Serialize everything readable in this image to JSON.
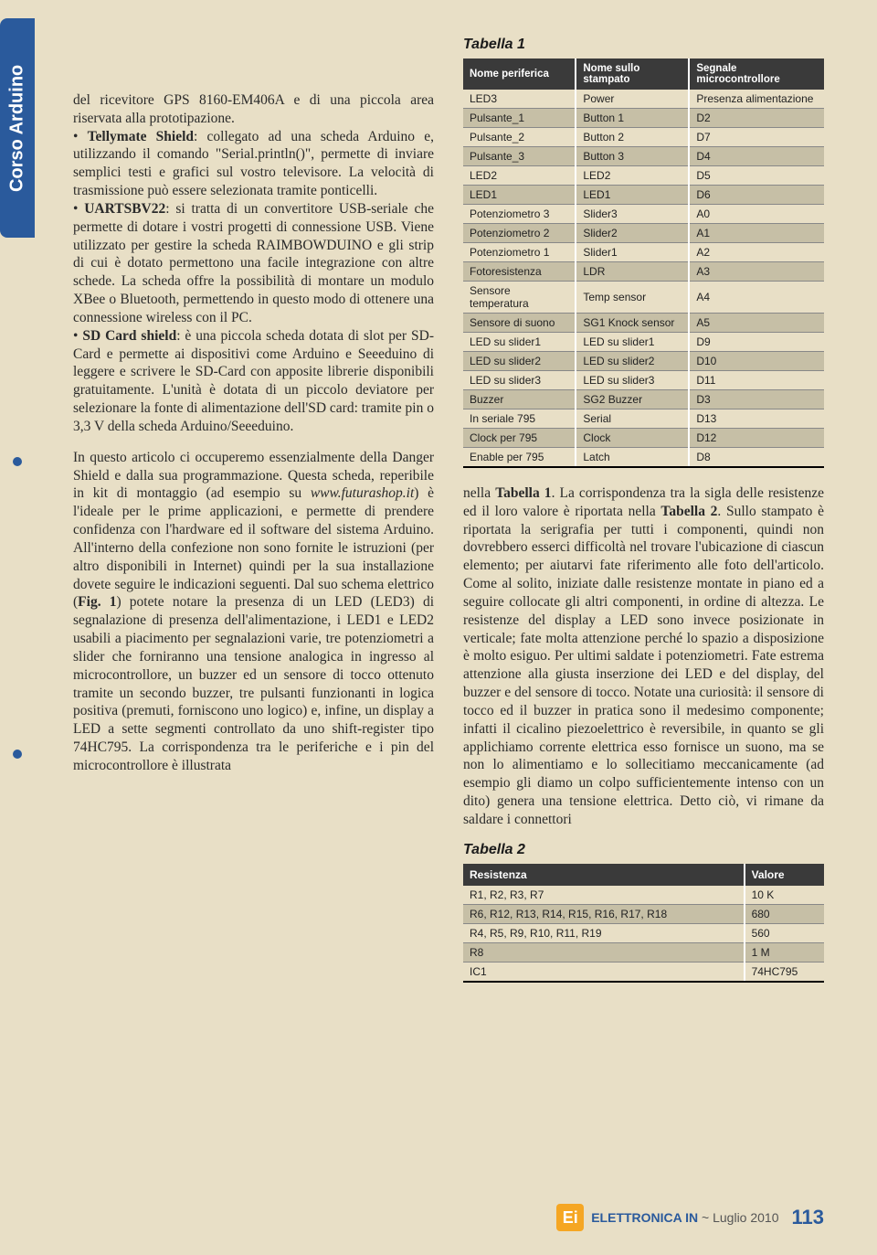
{
  "sidebar": {
    "label": "Corso Arduino"
  },
  "left_column": {
    "paragraphs": [
      "del ricevitore GPS 8160-EM406A e di una piccola area riservata alla prototipazione.",
      "• <b>Tellymate Shield</b>: collegato ad una scheda Arduino e, utilizzando il comando \"Serial.println()\", permette di inviare semplici testi e grafici sul vostro televisore. La velocità di trasmissione può essere selezionata tramite ponticelli.",
      "• <b>UARTSBV22</b>: si tratta di un convertitore USB-seriale che permette di dotare i vostri progetti di connessione USB. Viene utilizzato per gestire la scheda RAIMBOWDUINO e gli strip di cui è dotato permettono una facile integrazione con altre schede. La scheda offre la possibilità di montare un modulo XBee o Bluetooth, permettendo in questo modo di ottenere una connessione wireless con il PC.",
      "• <b>SD Card shield</b>: è una piccola scheda dotata di slot per SD-Card e permette ai dispositivi come Arduino e Seeeduino di leggere e scrivere le SD-Card con apposite librerie disponibili gratuitamente. L'unità è dotata di un piccolo deviatore per selezionare la fonte di alimentazione dell'SD card: tramite pin o 3,3 V della scheda Arduino/Seeeduino.",
      "In questo articolo ci occuperemo essenzialmente della Danger Shield e dalla sua programmazione. Questa scheda, reperibile in kit di montaggio (ad esempio su <i>www.futurashop.it</i>) è l'ideale per le prime applicazioni, e permette di prendere confidenza con l'hardware ed il software del sistema Arduino. All'interno della confezione non sono fornite le istruzioni (per altro disponibili in Internet) quindi per la sua installazione dovete seguire le indicazioni seguenti. Dal suo schema elettrico (<b>Fig. 1</b>) potete notare la presenza di un LED (LED3) di segnalazione di presenza dell'alimentazione, i LED1 e LED2 usabili a piacimento per segnalazioni varie, tre potenziometri a slider che forniranno una tensione analogica in ingresso al microcontrollore, un buzzer ed un sensore di tocco ottenuto tramite un secondo buzzer, tre pulsanti funzionanti in logica positiva (premuti, forniscono uno logico) e, infine, un display a LED a sette segmenti controllato da uno shift-register tipo 74HC795. La corrispondenza tra le periferiche e i pin del microcontrollore è illustrata"
    ]
  },
  "table1": {
    "title": "Tabella 1",
    "headers": [
      "Nome periferica",
      "Nome sullo stampato",
      "Segnale microcontrollore"
    ],
    "rows": [
      [
        "LED3",
        "Power",
        "Presenza alimentazione"
      ],
      [
        "Pulsante_1",
        "Button 1",
        "D2"
      ],
      [
        "Pulsante_2",
        "Button 2",
        "D7"
      ],
      [
        "Pulsante_3",
        "Button 3",
        "D4"
      ],
      [
        "LED2",
        "LED2",
        "D5"
      ],
      [
        "LED1",
        "LED1",
        "D6"
      ],
      [
        "Potenziometro 3",
        "Slider3",
        "A0"
      ],
      [
        "Potenziometro 2",
        "Slider2",
        "A1"
      ],
      [
        "Potenziometro 1",
        "Slider1",
        "A2"
      ],
      [
        "Fotoresistenza",
        "LDR",
        "A3"
      ],
      [
        "Sensore temperatura",
        "Temp sensor",
        "A4"
      ],
      [
        "Sensore di suono",
        "SG1 Knock sensor",
        "A5"
      ],
      [
        "LED su slider1",
        "LED su slider1",
        "D9"
      ],
      [
        "LED su slider2",
        "LED su slider2",
        "D10"
      ],
      [
        "LED su slider3",
        "LED su slider3",
        "D11"
      ],
      [
        "Buzzer",
        "SG2 Buzzer",
        "D3"
      ],
      [
        "In seriale 795",
        "Serial",
        "D13"
      ],
      [
        "Clock per 795",
        "Clock",
        "D12"
      ],
      [
        "Enable per 795",
        "Latch",
        "D8"
      ]
    ]
  },
  "right_column": {
    "paragraph": "nella <b>Tabella 1</b>. La corrispondenza tra la sigla delle resistenze ed il loro valore è riportata nella <b>Tabella 2</b>. Sullo stampato è riportata la serigrafia per tutti i componenti, quindi non dovrebbero esserci difficoltà nel trovare l'ubicazione di ciascun elemento; per aiutarvi fate riferimento alle foto dell'articolo. Come al solito, iniziate dalle resistenze montate in piano ed a seguire collocate gli altri componenti, in ordine di altezza. Le resistenze del display a LED sono invece posizionate in verticale; fate molta attenzione perché lo spazio a disposizione è molto esiguo. Per ultimi saldate i potenziometri. Fate estrema attenzione alla giusta inserzione dei LED e del display, del buzzer e del sensore di tocco. Notate una curiosità: il sensore di tocco ed il buzzer in pratica sono il medesimo componente; infatti il cicalino piezoelettrico è reversibile, in quanto se gli applichiamo corrente elettrica esso fornisce un suono, ma se non lo alimentiamo e lo sollecitiamo meccanicamente (ad esempio gli diamo un colpo sufficientemente intenso con un dito) genera una tensione elettrica. Detto ciò, vi rimane da saldare i connettori"
  },
  "table2": {
    "title": "Tabella 2",
    "headers": [
      "Resistenza",
      "Valore"
    ],
    "rows": [
      [
        "R1, R2, R3, R7",
        "10 K"
      ],
      [
        "R6, R12, R13, R14, R15, R16, R17, R18",
        "680"
      ],
      [
        "R4, R5, R9, R10, R11, R19",
        "560"
      ],
      [
        "R8",
        "1 M"
      ],
      [
        "IC1",
        "74HC795"
      ]
    ]
  },
  "footer": {
    "logo_text": "Ei",
    "magazine": "ELETTRONICA IN",
    "issue": "~ Luglio 2010",
    "page": "113"
  }
}
